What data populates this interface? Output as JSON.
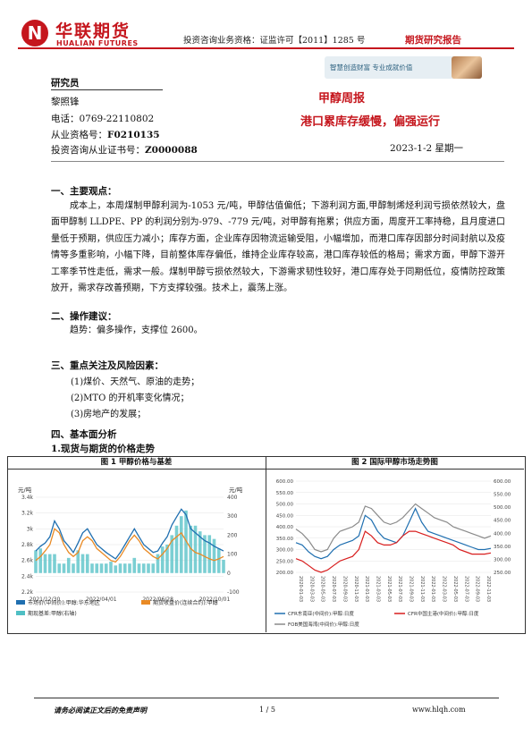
{
  "header": {
    "logo_cn": "华联期货",
    "logo_en": "HUALIAN FUTURES",
    "logo_letter": "N",
    "license": "投资咨询业务资格：证监许可【2011】1285 号",
    "report_tag": "期货研究报告",
    "slogan": "智慧创造财富  专业成就价值"
  },
  "author": {
    "role": "研究员",
    "name": "黎照锋",
    "phone": "电话：0769-22110802",
    "qual_label": "从业资格号：",
    "qual_no": "F0210135",
    "cert_label": "投资咨询从业证书号：",
    "cert_no": "Z0000088"
  },
  "report": {
    "title": "甲醇周报",
    "subtitle": "港口累库存缓慢，偏强运行",
    "date": "2023-1-2 星期一"
  },
  "sections": {
    "s1_title": "一、主要观点：",
    "s1_body": "成本上，本周煤制甲醇利润为-1053 元/吨，甲醇估值偏低；下游利润方面,甲醇制烯烃利润亏损依然较大，盘面甲醇制 LLDPE、PP 的利润分别为-979、-779 元/吨，对甲醇有拖累；供应方面，周度开工率持稳，且月度进口量低于预期，供应压力减小；库存方面，企业库存因物流运输受阻，小幅增加，而港口库存因部分时间封航以及疫情等多重影响，小幅下降，目前整体库存偏低，维持企业库存较高，港口库存较低的格局；需求方面，甲醇下游开工率季节性走低，需求一般。煤制甲醇亏损依然较大，下游需求韧性较好，港口库存处于同期低位，疫情防控政策放开，需求存改善预期，下方支撑较强。技术上，震荡上涨。",
    "s2_title": "二、操作建议：",
    "s2_body": "趋势：偏多操作，支撑位 2600。",
    "s3_title": "三、重点关注及风险因素：",
    "s3_items": [
      "(1)煤价、天然气、原油的走势；",
      "(2)MTO 的开机率变化情况；",
      "(3)房地产的发展；"
    ],
    "s4_title": "四、基本面分析",
    "s4_sub": "1.现货与期货的价格走势"
  },
  "figures": {
    "fig1_title": "图 1  甲醇价格与基差",
    "fig2_title": "图 2  国际甲醇市场走势图"
  },
  "chart_data": [
    {
      "type": "line",
      "title": "图 1  甲醇价格与基差",
      "ylabel_left": "元/吨",
      "ylabel_right": "元/吨",
      "y_left_ticks": [
        "3.4k",
        "3.2k",
        "3k",
        "2.8k",
        "2.6k",
        "2.4k",
        "2.2k"
      ],
      "y_right_ticks": [
        "400",
        "300",
        "200",
        "100",
        "0",
        "-100"
      ],
      "x_ticks": [
        "2021/12/30",
        "2022/04/01",
        "2022/06/28",
        "2022/10/01"
      ],
      "ylim_left": [
        2200,
        3400
      ],
      "ylim_right": [
        -100,
        400
      ],
      "legend_position": "bottom",
      "series": [
        {
          "name": "市场价(中间价):甲醇:华东地区",
          "axis": "left",
          "color": "#1f6fb0",
          "values": [
            2720,
            2780,
            2820,
            2900,
            3100,
            3000,
            2850,
            2780,
            2700,
            2820,
            2950,
            3000,
            2900,
            2800,
            2750,
            2700,
            2660,
            2620,
            2700,
            2800,
            2900,
            3000,
            2900,
            2800,
            2750,
            2700,
            2720,
            2820,
            2900,
            3050,
            3150,
            3250,
            3180,
            3000,
            2950,
            2900,
            2850,
            2820,
            2780,
            2750,
            2720
          ]
        },
        {
          "name": "期货收盘价(连续合约):甲醇",
          "axis": "left",
          "color": "#e98a24",
          "values": [
            2600,
            2650,
            2720,
            2800,
            3000,
            2950,
            2800,
            2700,
            2650,
            2700,
            2850,
            2900,
            2850,
            2750,
            2700,
            2650,
            2600,
            2580,
            2650,
            2750,
            2850,
            2920,
            2850,
            2750,
            2700,
            2650,
            2620,
            2680,
            2750,
            2850,
            2900,
            2950,
            2850,
            2750,
            2700,
            2680,
            2650,
            2620,
            2600,
            2620,
            2650
          ]
        },
        {
          "name": "期现基差:甲醇(右轴)",
          "axis": "right",
          "type": "area",
          "color": "#4fbfc4",
          "values": [
            120,
            130,
            100,
            100,
            100,
            50,
            50,
            80,
            50,
            120,
            100,
            100,
            50,
            50,
            50,
            50,
            60,
            40,
            50,
            50,
            50,
            80,
            50,
            50,
            50,
            50,
            100,
            140,
            150,
            200,
            250,
            300,
            330,
            250,
            250,
            220,
            200,
            200,
            180,
            130,
            70
          ]
        }
      ]
    },
    {
      "type": "line",
      "title": "图 2  国际甲醇市场走势图",
      "y_left_ticks": [
        "600.00",
        "550.00",
        "500.00",
        "450.00",
        "400.00",
        "350.00",
        "300.00",
        "250.00",
        "200.00"
      ],
      "y_right_ticks": [
        "600.00",
        "550.00",
        "500.00",
        "450.00",
        "400.00",
        "350.00",
        "300.00",
        "250.00"
      ],
      "x_ticks": [
        "2020-01-03",
        "2020-03-03",
        "2020-05-03",
        "2020-07-03",
        "2020-09-03",
        "2020-11-03",
        "2021-01-03",
        "2021-03-03",
        "2021-05-03",
        "2021-07-03",
        "2021-09-03",
        "2021-11-03",
        "2022-01-03",
        "2022-03-03",
        "2022-05-03",
        "2022-07-03",
        "2022-09-03",
        "2022-11-03"
      ],
      "ylim_left": [
        200,
        600
      ],
      "ylim_right": [
        250,
        600
      ],
      "legend_position": "bottom",
      "series": [
        {
          "name": "CFR东南亚(中间价):甲醇:日度",
          "color": "#1f6fb0",
          "values": [
            330,
            320,
            290,
            270,
            260,
            270,
            300,
            320,
            330,
            340,
            360,
            450,
            430,
            380,
            350,
            340,
            330,
            360,
            420,
            480,
            420,
            380,
            370,
            360,
            350,
            340,
            330,
            320,
            310,
            300,
            300,
            305
          ]
        },
        {
          "name": "CFR中国主港(中间价):甲醇:日度",
          "color": "#d81e1e",
          "values": [
            260,
            250,
            230,
            210,
            200,
            210,
            230,
            250,
            260,
            270,
            300,
            380,
            360,
            330,
            320,
            320,
            330,
            360,
            380,
            380,
            370,
            360,
            350,
            340,
            330,
            320,
            300,
            290,
            280,
            280,
            280,
            285
          ]
        },
        {
          "name": "FOB美国海湾(中间价):甲醇:日度",
          "color": "#8a8a8a",
          "values": [
            390,
            370,
            340,
            300,
            290,
            300,
            350,
            380,
            390,
            400,
            420,
            490,
            480,
            450,
            420,
            410,
            420,
            440,
            470,
            500,
            480,
            460,
            440,
            430,
            420,
            400,
            390,
            380,
            370,
            360,
            350,
            360
          ]
        }
      ]
    }
  ],
  "footer": {
    "disclaimer": "请务必阅读正文后的免责声明",
    "page": "1 / 5",
    "site": "www.hlqh.com"
  }
}
